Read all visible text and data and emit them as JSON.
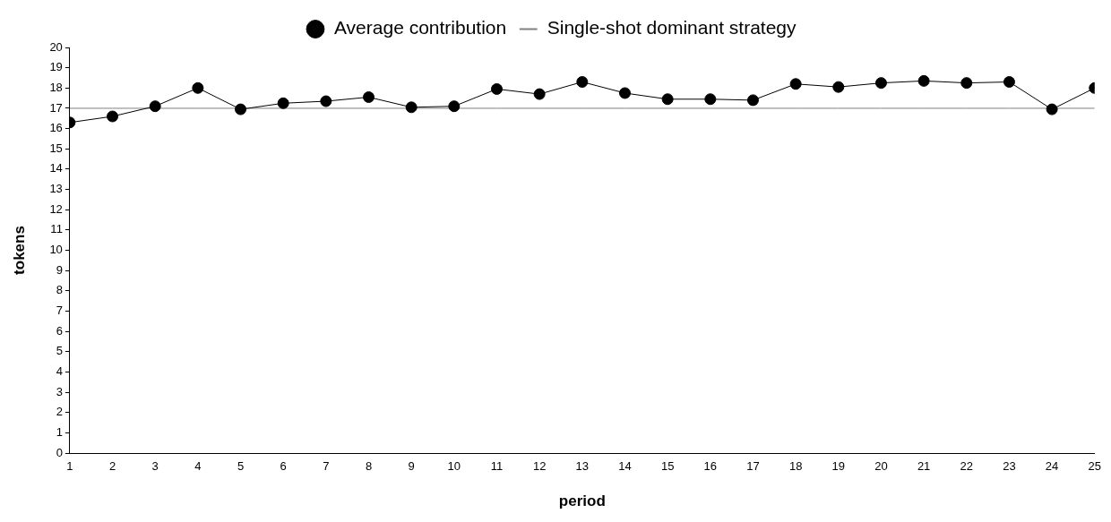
{
  "chart_data": {
    "type": "line",
    "xlabel": "period",
    "ylabel": "tokens",
    "x": [
      1,
      2,
      3,
      4,
      5,
      6,
      7,
      8,
      9,
      10,
      11,
      12,
      13,
      14,
      15,
      16,
      17,
      18,
      19,
      20,
      21,
      22,
      23,
      24,
      25
    ],
    "xlim": [
      1,
      25
    ],
    "xticks": [
      1,
      2,
      3,
      4,
      5,
      6,
      7,
      8,
      9,
      10,
      11,
      12,
      13,
      14,
      15,
      16,
      17,
      18,
      19,
      20,
      21,
      22,
      23,
      24,
      25
    ],
    "ylim": [
      0,
      20
    ],
    "yticks": [
      0,
      1,
      2,
      3,
      4,
      5,
      6,
      7,
      8,
      9,
      10,
      11,
      12,
      13,
      14,
      15,
      16,
      17,
      18,
      19,
      20
    ],
    "grid": false,
    "legend": "top",
    "series": [
      {
        "name": "Average contribution",
        "color": "#000000",
        "marker": "circle",
        "values": [
          16.3,
          16.6,
          17.1,
          18.0,
          16.95,
          17.25,
          17.35,
          17.55,
          17.05,
          17.1,
          17.95,
          17.7,
          18.3,
          17.75,
          17.45,
          17.45,
          17.4,
          18.2,
          18.05,
          18.25,
          18.35,
          18.25,
          18.3,
          16.95,
          18.0
        ]
      },
      {
        "name": "Single-shot dominant strategy",
        "color": "#808080",
        "marker": "none",
        "values": [
          17,
          17,
          17,
          17,
          17,
          17,
          17,
          17,
          17,
          17,
          17,
          17,
          17,
          17,
          17,
          17,
          17,
          17,
          17,
          17,
          17,
          17,
          17,
          17,
          17
        ]
      }
    ]
  }
}
